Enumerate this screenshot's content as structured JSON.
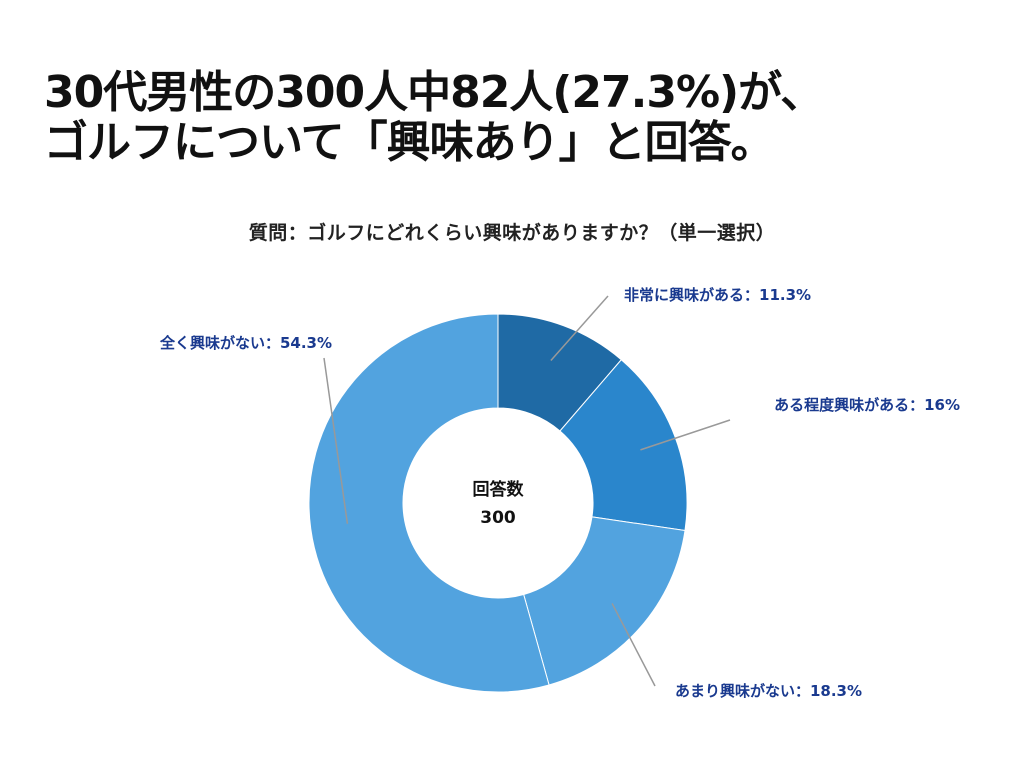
{
  "headline": {
    "line1": "30代男性の300人中82人(27.3%)が、",
    "line2": "ゴルフについて「興味あり」と回答。"
  },
  "subtitle": "質問：ゴルフにどれくらい興味がありますか？（単一選択）",
  "center": {
    "label": "回答数",
    "value": "300"
  },
  "colors": {
    "label_text": "#1a3a8f",
    "leader_line": "#999999",
    "slice_border": "#ffffff"
  },
  "chart_data": {
    "type": "pie",
    "donut": true,
    "total": 300,
    "slices": [
      {
        "label": "非常に興味がある：11.3%",
        "value": 11.3,
        "color": "#1f6aa5"
      },
      {
        "label": "ある程度興味がある：16%",
        "value": 16,
        "color": "#2a86cc"
      },
      {
        "label": "あまり興味がない：18.3%",
        "value": 18.3,
        "color": "#52a3df"
      },
      {
        "label": "全く興味がない：54.3%",
        "value": 54.3,
        "color": "#52a3df"
      }
    ]
  }
}
